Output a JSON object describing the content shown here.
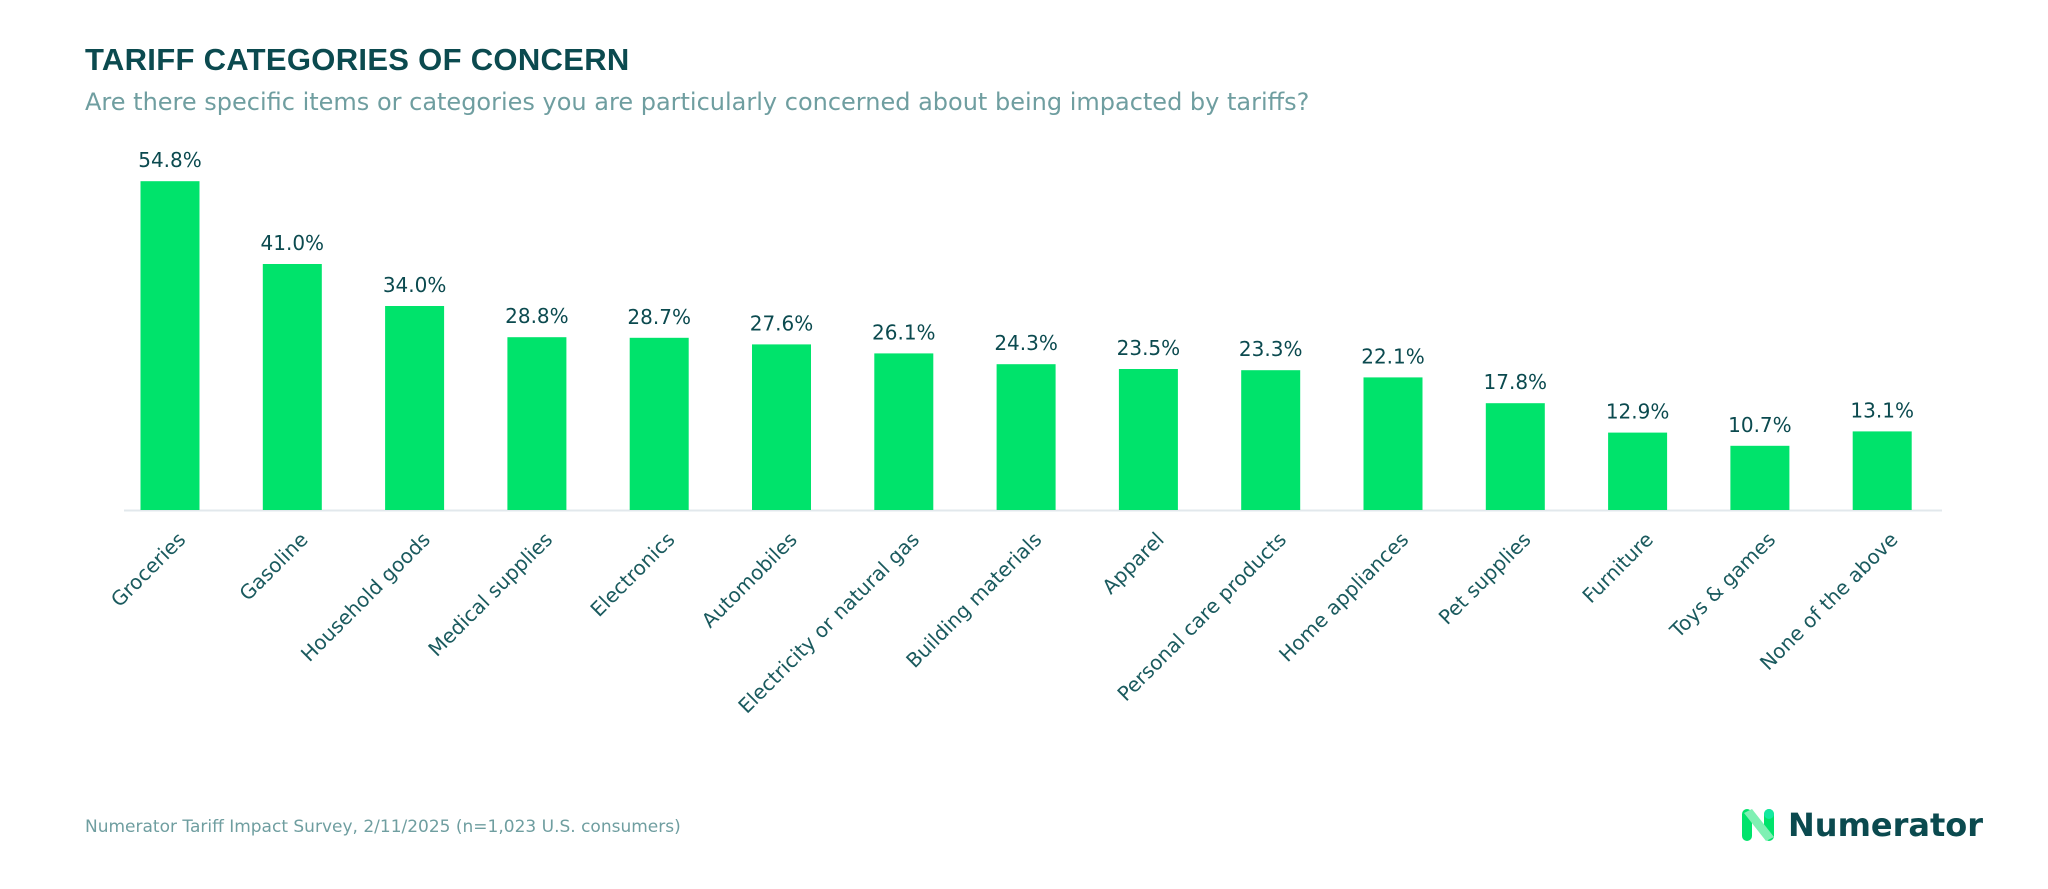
{
  "colors": {
    "bar": "#00e36b",
    "title": "#0b4a4f",
    "subtitle": "#6f9ea0",
    "axis": "#e2e8ec",
    "logo_green": "#00e36b"
  },
  "chart_data": {
    "type": "bar",
    "title": "TARIFF CATEGORIES OF CONCERN",
    "subtitle": "Are there specific items or categories you are particularly concerned about being impacted by tariffs?",
    "categories": [
      "Groceries",
      "Gasoline",
      "Household goods",
      "Medical supplies",
      "Electronics",
      "Automobiles",
      "Electricity or natural gas",
      "Building materials",
      "Apparel",
      "Personal care products",
      "Home appliances",
      "Pet supplies",
      "Furniture",
      "Toys & games",
      "None of the above"
    ],
    "values": [
      54.8,
      41.0,
      34.0,
      28.8,
      28.7,
      27.6,
      26.1,
      24.3,
      23.5,
      23.3,
      22.1,
      17.8,
      12.9,
      10.7,
      13.1
    ],
    "value_labels": [
      "54.8%",
      "41.0%",
      "34.0%",
      "28.8%",
      "28.7%",
      "27.6%",
      "26.1%",
      "24.3%",
      "23.5%",
      "23.3%",
      "22.1%",
      "17.8%",
      "12.9%",
      "10.7%",
      "13.1%"
    ],
    "unit": "%",
    "grid": false,
    "legend": "none",
    "xlabel": "",
    "ylabel": ""
  },
  "footer": {
    "source": "Numerator Tariff Impact Survey, 2/11/2025 (n=1,023 U.S. consumers)"
  },
  "logo": {
    "text": "Numerator",
    "icon": "numerator-n-logo"
  }
}
